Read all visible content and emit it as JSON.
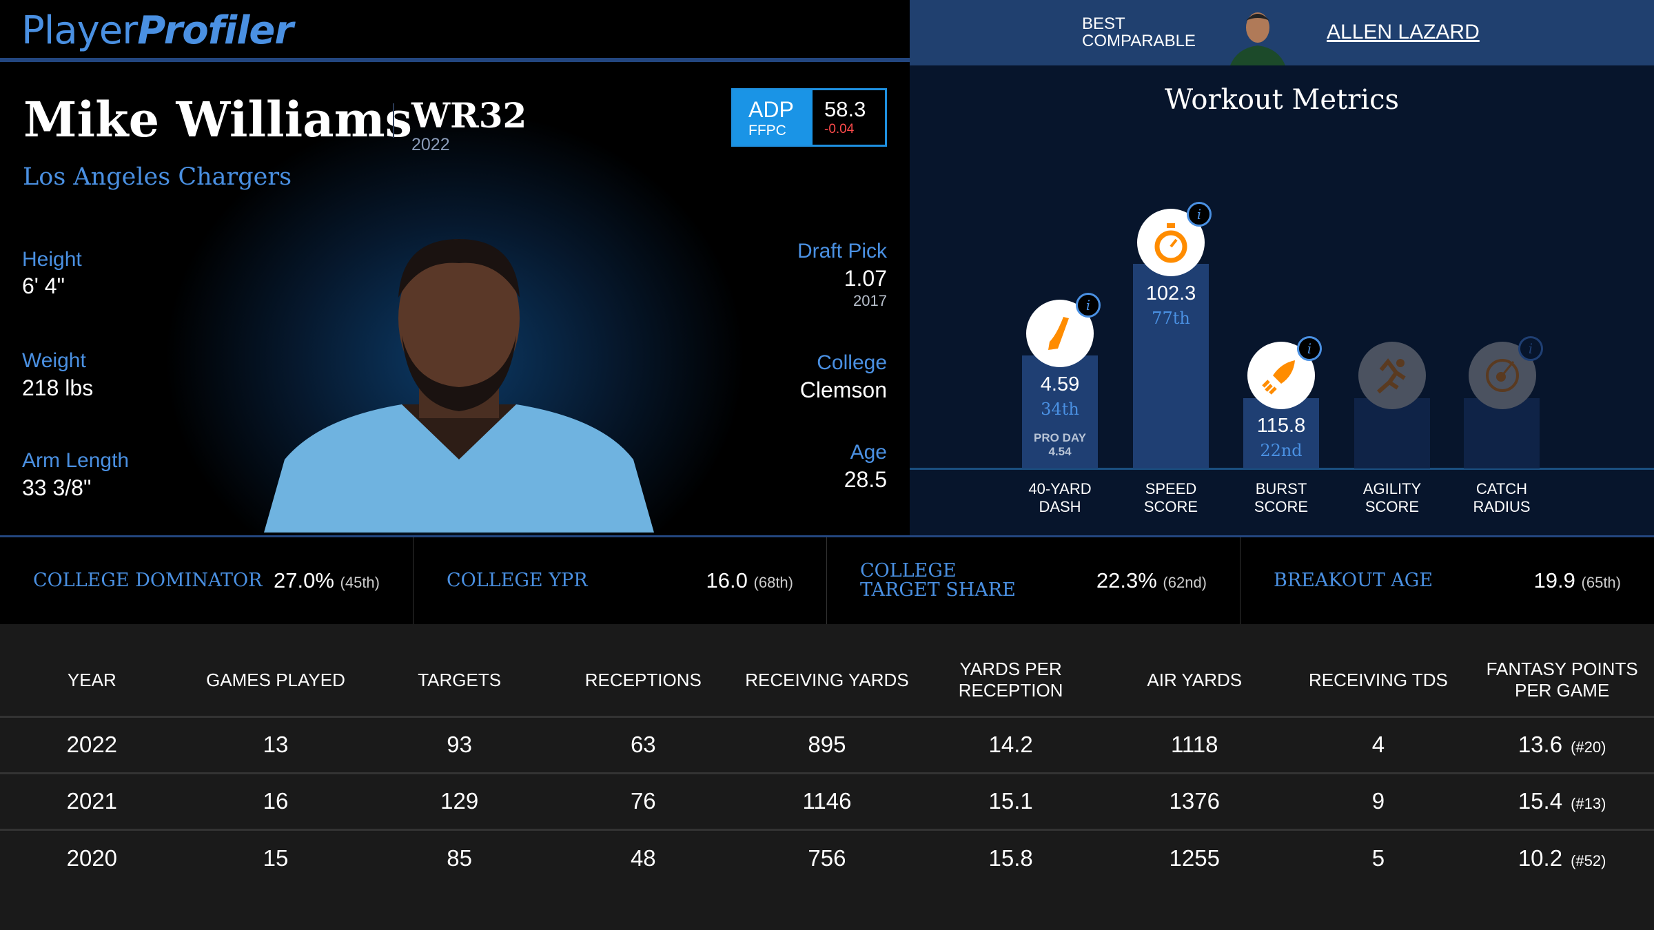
{
  "brand": {
    "part1": "Player",
    "part2": "Profiler"
  },
  "player": {
    "name": "Mike Williams",
    "position_rank": "WR32",
    "season": "2022",
    "team": "Los Angeles Chargers"
  },
  "adp": {
    "label": "ADP",
    "source": "FFPC",
    "value": "58.3",
    "change": "-0.04"
  },
  "bio": {
    "height_label": "Height",
    "height": "6' 4\"",
    "weight_label": "Weight",
    "weight": "218 lbs",
    "arm_label": "Arm Length",
    "arm": "33 3/8\"",
    "draft_label": "Draft Pick",
    "draft": "1.07",
    "draft_year": "2017",
    "college_label": "College",
    "college": "Clemson",
    "age_label": "Age",
    "age": "28.5"
  },
  "comparable": {
    "label": "BEST COMPARABLE",
    "name": "ALLEN LAZARD"
  },
  "workout": {
    "title": "Workout Metrics",
    "metrics": [
      {
        "label1": "40-YARD",
        "label2": "DASH",
        "value": "4.59",
        "pct": "34th",
        "pro_day_label": "PRO DAY",
        "pro_day": "4.54",
        "percentile": 34
      },
      {
        "label1": "SPEED",
        "label2": "SCORE",
        "value": "102.3",
        "pct": "77th",
        "percentile": 77
      },
      {
        "label1": "BURST",
        "label2": "SCORE",
        "value": "115.8",
        "pct": "22nd",
        "percentile": 22
      },
      {
        "label1": "AGILITY",
        "label2": "SCORE"
      },
      {
        "label1": "CATCH",
        "label2": "RADIUS"
      }
    ]
  },
  "college_stats": [
    {
      "label": "COLLEGE DOMINATOR",
      "value": "27.0%",
      "rank": "(45th)"
    },
    {
      "label": "COLLEGE YPR",
      "value": "16.0",
      "rank": "(68th)"
    },
    {
      "label": "COLLEGE TARGET SHARE",
      "value": "22.3%",
      "rank": "(62nd)"
    },
    {
      "label": "BREAKOUT AGE",
      "value": "19.9",
      "rank": "(65th)"
    }
  ],
  "table": {
    "headers": [
      "YEAR",
      "GAMES PLAYED",
      "TARGETS",
      "RECEPTIONS",
      "RECEIVING YARDS",
      "YARDS PER RECEPTION",
      "AIR YARDS",
      "RECEIVING TDS",
      "FANTASY POINTS PER GAME"
    ],
    "rows": [
      [
        "2022",
        "13",
        "93",
        "63",
        "895",
        "14.2",
        "1118",
        "4",
        "13.6",
        "(#20)"
      ],
      [
        "2021",
        "16",
        "129",
        "76",
        "1146",
        "15.1",
        "1376",
        "9",
        "15.4",
        "(#13)"
      ],
      [
        "2020",
        "15",
        "85",
        "48",
        "756",
        "15.8",
        "1255",
        "5",
        "10.2",
        "(#52)"
      ]
    ]
  }
}
